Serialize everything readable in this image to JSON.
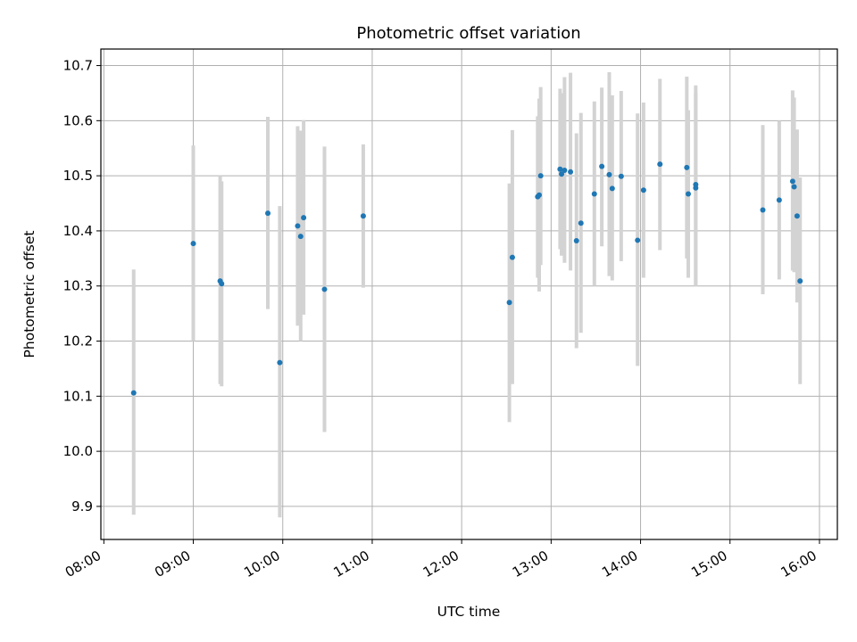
{
  "chart_data": {
    "type": "scatter",
    "title": "Photometric offset variation",
    "xlabel": "UTC time",
    "ylabel": "Photometric offset",
    "x_ticks": [
      "08:00",
      "09:00",
      "10:00",
      "11:00",
      "12:00",
      "13:00",
      "14:00",
      "15:00",
      "16:00"
    ],
    "y_ticks": [
      "9.9",
      "10.0",
      "10.1",
      "10.2",
      "10.3",
      "10.4",
      "10.5",
      "10.6",
      "10.7"
    ],
    "xlim": [
      "07:58",
      "16:12"
    ],
    "ylim": [
      9.84,
      10.73
    ],
    "grid": true,
    "colors": {
      "point": "#1f77b4",
      "error_bar": "#d3d3d3",
      "grid": "#b0b0b0"
    },
    "points": [
      {
        "x": "08:20",
        "y": 10.106,
        "lo": 9.885,
        "hi": 10.33
      },
      {
        "x": "09:00",
        "y": 10.377,
        "lo": 10.2,
        "hi": 10.555
      },
      {
        "x": "09:18",
        "y": 10.309,
        "lo": 10.122,
        "hi": 10.5
      },
      {
        "x": "09:19",
        "y": 10.304,
        "lo": 10.118,
        "hi": 10.49
      },
      {
        "x": "09:50",
        "y": 10.432,
        "lo": 10.258,
        "hi": 10.607
      },
      {
        "x": "09:58",
        "y": 10.161,
        "lo": 9.88,
        "hi": 10.445
      },
      {
        "x": "10:10",
        "y": 10.409,
        "lo": 10.228,
        "hi": 10.59
      },
      {
        "x": "10:12",
        "y": 10.39,
        "lo": 10.2,
        "hi": 10.582
      },
      {
        "x": "10:14",
        "y": 10.424,
        "lo": 10.248,
        "hi": 10.601
      },
      {
        "x": "10:28",
        "y": 10.294,
        "lo": 10.035,
        "hi": 10.553
      },
      {
        "x": "10:54",
        "y": 10.427,
        "lo": 10.297,
        "hi": 10.557
      },
      {
        "x": "12:32",
        "y": 10.27,
        "lo": 10.053,
        "hi": 10.486
      },
      {
        "x": "12:34",
        "y": 10.352,
        "lo": 10.122,
        "hi": 10.583
      },
      {
        "x": "12:51",
        "y": 10.462,
        "lo": 10.315,
        "hi": 10.608
      },
      {
        "x": "12:52",
        "y": 10.465,
        "lo": 10.29,
        "hi": 10.64
      },
      {
        "x": "12:53",
        "y": 10.5,
        "lo": 10.338,
        "hi": 10.661
      },
      {
        "x": "13:06",
        "y": 10.512,
        "lo": 10.367,
        "hi": 10.658
      },
      {
        "x": "13:07",
        "y": 10.503,
        "lo": 10.355,
        "hi": 10.65
      },
      {
        "x": "13:09",
        "y": 10.51,
        "lo": 10.342,
        "hi": 10.679
      },
      {
        "x": "13:13",
        "y": 10.507,
        "lo": 10.328,
        "hi": 10.687
      },
      {
        "x": "13:17",
        "y": 10.382,
        "lo": 10.187,
        "hi": 10.577
      },
      {
        "x": "13:20",
        "y": 10.414,
        "lo": 10.215,
        "hi": 10.614
      },
      {
        "x": "13:29",
        "y": 10.467,
        "lo": 10.3,
        "hi": 10.635
      },
      {
        "x": "13:34",
        "y": 10.517,
        "lo": 10.372,
        "hi": 10.66
      },
      {
        "x": "13:39",
        "y": 10.502,
        "lo": 10.318,
        "hi": 10.688
      },
      {
        "x": "13:41",
        "y": 10.477,
        "lo": 10.31,
        "hi": 10.646
      },
      {
        "x": "13:47",
        "y": 10.499,
        "lo": 10.345,
        "hi": 10.654
      },
      {
        "x": "13:58",
        "y": 10.383,
        "lo": 10.155,
        "hi": 10.613
      },
      {
        "x": "14:02",
        "y": 10.474,
        "lo": 10.315,
        "hi": 10.633
      },
      {
        "x": "14:13",
        "y": 10.521,
        "lo": 10.365,
        "hi": 10.676
      },
      {
        "x": "14:31",
        "y": 10.515,
        "lo": 10.35,
        "hi": 10.68
      },
      {
        "x": "14:32",
        "y": 10.467,
        "lo": 10.315,
        "hi": 10.619
      },
      {
        "x": "14:37",
        "y": 10.484,
        "lo": 10.3,
        "hi": 10.664
      },
      {
        "x": "14:37",
        "y": 10.478,
        "lo": 10.3,
        "hi": 10.65
      },
      {
        "x": "15:22",
        "y": 10.438,
        "lo": 10.285,
        "hi": 10.592
      },
      {
        "x": "15:33",
        "y": 10.456,
        "lo": 10.312,
        "hi": 10.6
      },
      {
        "x": "15:42",
        "y": 10.49,
        "lo": 10.328,
        "hi": 10.655
      },
      {
        "x": "15:43",
        "y": 10.48,
        "lo": 10.325,
        "hi": 10.642
      },
      {
        "x": "15:45",
        "y": 10.427,
        "lo": 10.27,
        "hi": 10.584
      },
      {
        "x": "15:47",
        "y": 10.309,
        "lo": 10.122,
        "hi": 10.497
      }
    ]
  }
}
